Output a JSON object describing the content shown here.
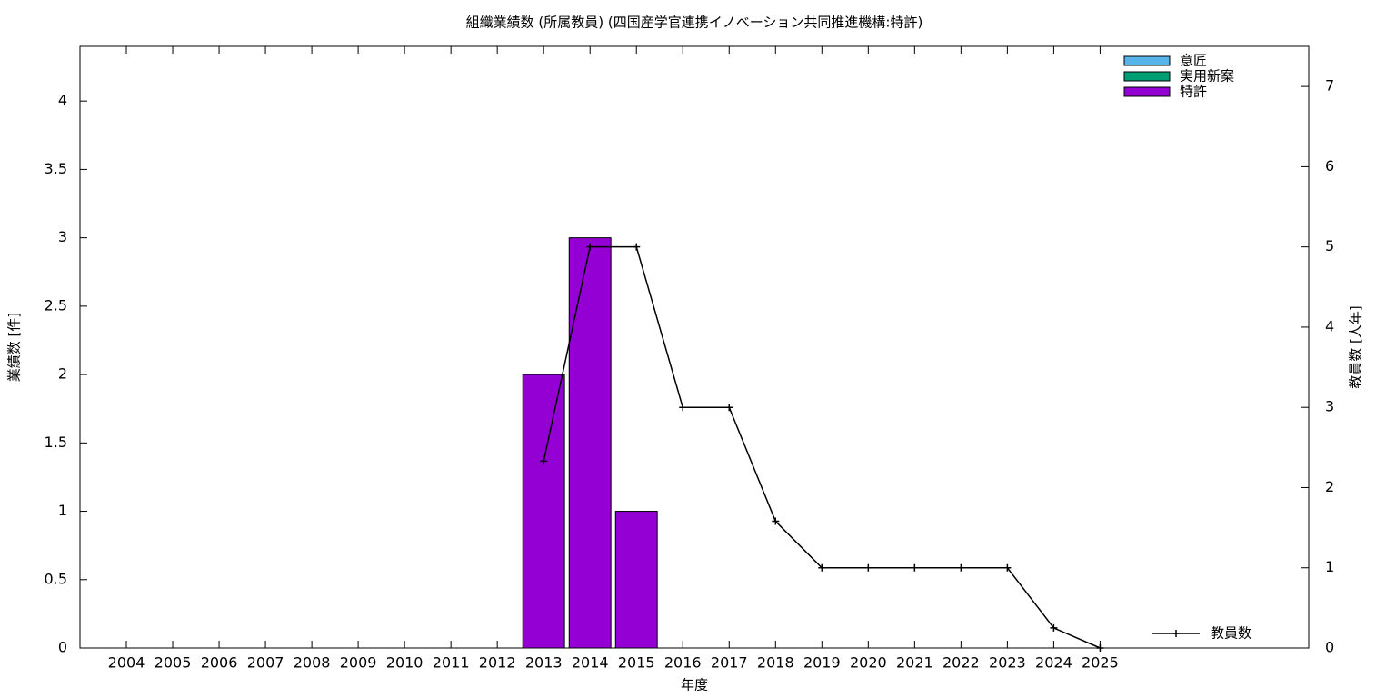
{
  "chart_data": {
    "type": "bar_line",
    "title": "組織業績数 (所属教員) (四国産学官連携イノベーション共同推進機構:特許)",
    "xlabel": "年度",
    "ylabel": "業績数 [件]",
    "y2label": "教員数 [人年]",
    "categories": [
      "2004",
      "2005",
      "2006",
      "2007",
      "2008",
      "2009",
      "2010",
      "2011",
      "2012",
      "2013",
      "2014",
      "2015",
      "2016",
      "2017",
      "2018",
      "2019",
      "2020",
      "2021",
      "2022",
      "2023",
      "2024",
      "2025"
    ],
    "series": [
      {
        "name": "意匠",
        "type": "bar",
        "color": "#56b4e9",
        "values": [
          0,
          0,
          0,
          0,
          0,
          0,
          0,
          0,
          0,
          0,
          0,
          0,
          0,
          0,
          0,
          0,
          0,
          0,
          0,
          0,
          0,
          0
        ]
      },
      {
        "name": "実用新案",
        "type": "bar",
        "color": "#009e73",
        "values": [
          0,
          0,
          0,
          0,
          0,
          0,
          0,
          0,
          0,
          0,
          0,
          0,
          0,
          0,
          0,
          0,
          0,
          0,
          0,
          0,
          0,
          0
        ]
      },
      {
        "name": "特許",
        "type": "bar",
        "color": "#9400d3",
        "values": [
          0,
          0,
          0,
          0,
          0,
          0,
          0,
          0,
          0,
          2,
          3,
          1,
          0,
          0,
          0,
          0,
          0,
          0,
          0,
          0,
          0,
          0
        ]
      },
      {
        "name": "教員数",
        "type": "line",
        "axis": "y2",
        "color": "#000000",
        "values": [
          null,
          null,
          null,
          null,
          null,
          null,
          null,
          null,
          null,
          2.33,
          5,
          5,
          3,
          3,
          1.58,
          1,
          1,
          1,
          1,
          1,
          0.25,
          0
        ]
      }
    ],
    "ylim": [
      0,
      4.4
    ],
    "yticks": [
      0,
      0.5,
      1,
      1.5,
      2,
      2.5,
      3,
      3.5,
      4
    ],
    "y2lim": [
      0,
      7.5
    ],
    "y2ticks": [
      0,
      1,
      2,
      3,
      4,
      5,
      6,
      7
    ],
    "stacked": true
  }
}
